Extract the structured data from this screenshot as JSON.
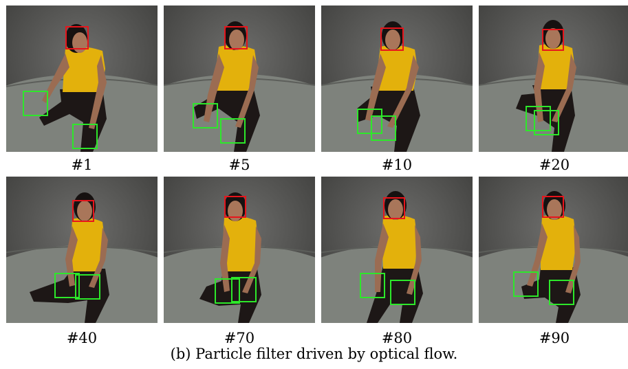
{
  "figure": {
    "caption": "(b) Particle filter driven by optical flow.",
    "colors": {
      "face_box": "#e8141b",
      "hand_box": "#2de82a",
      "shirt": "#e2b10b",
      "pants": "#1a1514"
    },
    "frames": [
      {
        "label": "#1"
      },
      {
        "label": "#5"
      },
      {
        "label": "#10"
      },
      {
        "label": "#20"
      },
      {
        "label": "#40"
      },
      {
        "label": "#70"
      },
      {
        "label": "#80"
      },
      {
        "label": "#90"
      }
    ]
  }
}
